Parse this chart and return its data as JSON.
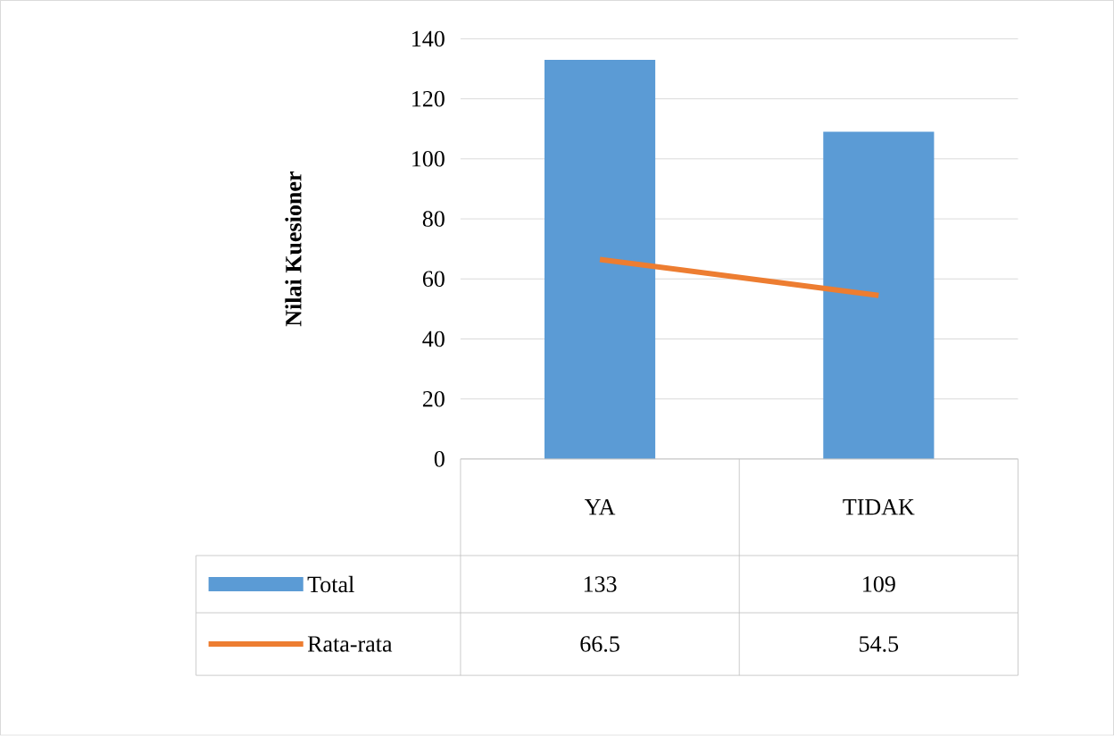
{
  "chart_data": {
    "type": "bar",
    "ylabel": "Nilai Kuesioner",
    "categories": [
      "YA",
      "TIDAK"
    ],
    "series": [
      {
        "name": "Total",
        "color": "#5b9bd5",
        "values": [
          133,
          109
        ]
      },
      {
        "name": "Rata-rata",
        "type": "line",
        "color": "#ed7d31",
        "values": [
          66.5,
          54.5
        ]
      }
    ],
    "ylim": [
      0,
      140
    ],
    "yticks": [
      0,
      20,
      40,
      60,
      80,
      100,
      120,
      140
    ],
    "grid": "y",
    "legend": "bottom",
    "data_labels": true
  }
}
